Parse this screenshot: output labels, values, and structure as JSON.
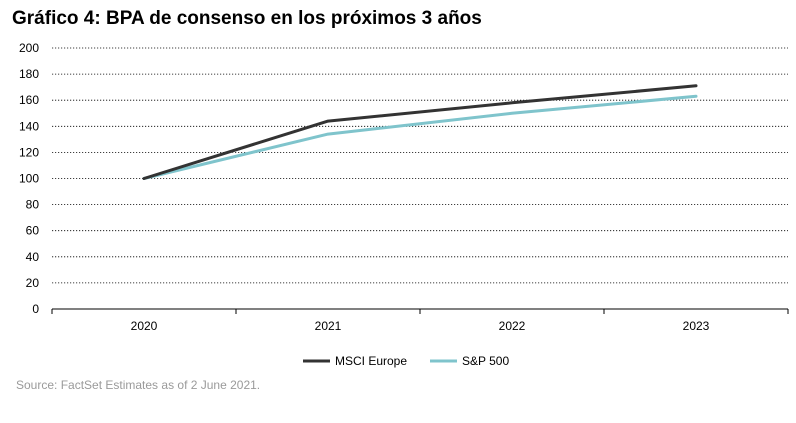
{
  "chart_data": {
    "type": "line",
    "title": "Gráfico 4: BPA de consenso en los próximos 3 años",
    "categories": [
      "2020",
      "2021",
      "2022",
      "2023"
    ],
    "series": [
      {
        "name": "MSCI Europe",
        "values": [
          100,
          144,
          158,
          171
        ],
        "color": "#333333"
      },
      {
        "name": "S&P 500",
        "values": [
          100,
          134,
          150,
          163
        ],
        "color": "#7fc4cc"
      }
    ],
    "ylim": [
      0,
      200
    ],
    "yticks": [
      0,
      20,
      40,
      60,
      80,
      100,
      120,
      140,
      160,
      180,
      200
    ],
    "xlabel": "",
    "ylabel": "",
    "grid": true,
    "legend_position": "bottom-center"
  },
  "source": "Source: FactSet Estimates as of 2 June 2021."
}
